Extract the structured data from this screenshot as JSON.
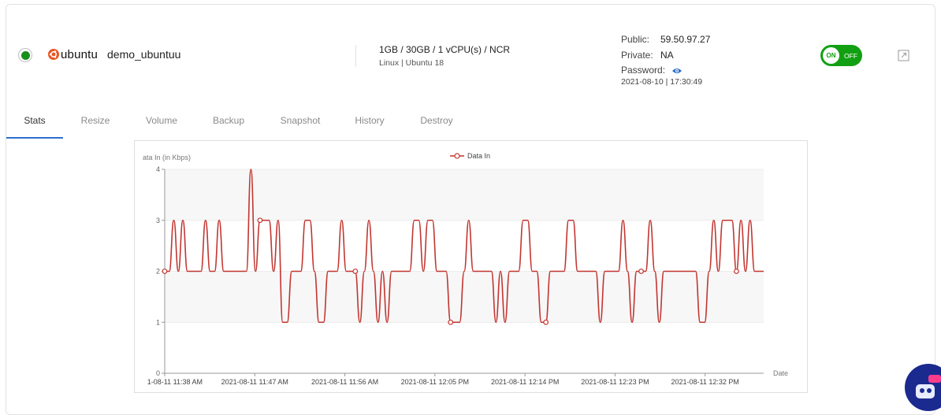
{
  "server": {
    "brand": "ubuntu",
    "name": "demo_ubuntuu",
    "spec": "1GB / 30GB / 1 vCPU(s) / NCR",
    "os": "Linux | Ubuntu 18",
    "public_label": "Public:",
    "public_ip": "59.50.97.27",
    "private_label": "Private:",
    "private_ip": "NA",
    "password_label": "Password:",
    "created": "2021-08-10 | 17:30:49",
    "power_on": "ON",
    "power_off": "OFF",
    "status_color": "#1a8f1a",
    "toggle_color": "#12a012"
  },
  "tabs": [
    "Stats",
    "Resize",
    "Volume",
    "Backup",
    "Snapshot",
    "History",
    "Destroy"
  ],
  "active_tab": "Stats",
  "chart_data": {
    "type": "line",
    "ylabel": "ata In (in Kbps)",
    "xlabel": "Date",
    "legend": "Data In",
    "legend_position": "top-center",
    "ylim": [
      0,
      4
    ],
    "yticks": [
      "0",
      "1",
      "2",
      "3",
      "4"
    ],
    "xticks": [
      "1-08-11 11:38 AM",
      "2021-08-11 11:47 AM",
      "2021-08-11 11:56 AM",
      "2021-08-11 12:05 PM",
      "2021-08-11 12:14 PM",
      "2021-08-11 12:23 PM",
      "2021-08-11 12:32 PM"
    ],
    "series_color": "#c23531",
    "series": [
      {
        "name": "Data In",
        "values": [
          2,
          2,
          3,
          2,
          3,
          2,
          2,
          2,
          2,
          3,
          2,
          2,
          3,
          2,
          2,
          2,
          2,
          2,
          2,
          4,
          2,
          3,
          3,
          3,
          2,
          3,
          1,
          1,
          2,
          2,
          2,
          3,
          3,
          2,
          1,
          1,
          2,
          2,
          2,
          3,
          2,
          2,
          2,
          1,
          2,
          3,
          2,
          1,
          2,
          1,
          2,
          2,
          2,
          2,
          2,
          3,
          3,
          2,
          3,
          3,
          2,
          2,
          2,
          1,
          1,
          1,
          2,
          3,
          2,
          2,
          2,
          2,
          2,
          1,
          2,
          1,
          2,
          2,
          2,
          3,
          3,
          2,
          2,
          1,
          1,
          2,
          2,
          2,
          2,
          3,
          3,
          2,
          2,
          2,
          2,
          2,
          1,
          2,
          2,
          2,
          2,
          3,
          2,
          1,
          2,
          2,
          2,
          3,
          2,
          1,
          2,
          2,
          2,
          2,
          2,
          2,
          2,
          2,
          1,
          1,
          2,
          3,
          2,
          3,
          3,
          3,
          2,
          3,
          2,
          3,
          2,
          2,
          2
        ]
      }
    ],
    "hollow_markers_at": [
      0,
      21,
      42,
      63,
      84,
      105,
      126
    ]
  }
}
